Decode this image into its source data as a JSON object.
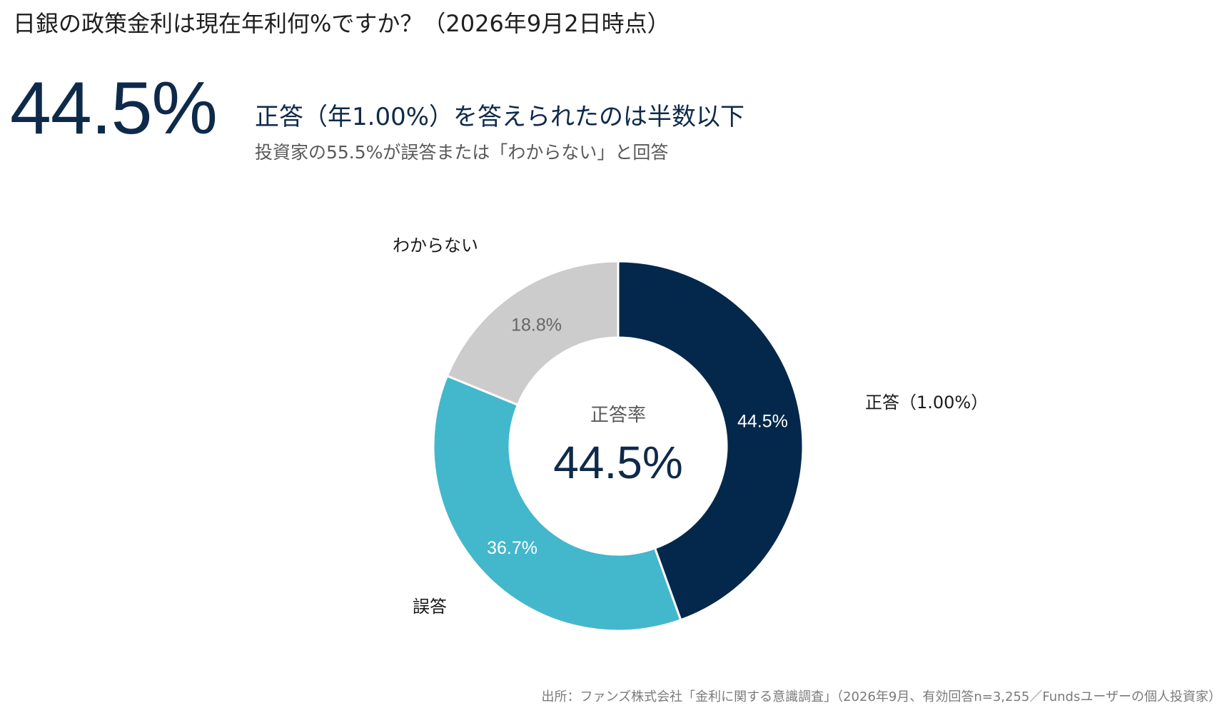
{
  "question": "日銀の政策金利は現在年利何%ですか？（2026年9月2日時点）",
  "headline": {
    "big_value": "44.5%",
    "title": "正答（年1.00%）を答えられたのは半数以下",
    "subtitle": "投資家の55.5%が誤答または「わからない」と回答"
  },
  "chart_data": {
    "type": "pie",
    "donut": true,
    "center_label": "正答率",
    "center_value": "44.5%",
    "slices": [
      {
        "name": "正答（1.00%）",
        "value": 44.5,
        "label": "44.5%",
        "color": "#04284b",
        "text_color": "#ffffff"
      },
      {
        "name": "誤答",
        "value": 36.7,
        "label": "36.7%",
        "color": "#43b7cc",
        "text_color": "#ffffff"
      },
      {
        "name": "わからない",
        "value": 18.8,
        "label": "18.8%",
        "color": "#cccccc",
        "text_color": "#666666"
      }
    ]
  },
  "source": "出所：ファンズ株式会社「金利に関する意識調査」（2026年9月、有効回答n=3,255／Fundsユーザーの個人投資家）",
  "colors": {
    "accent": "#0e2a4a",
    "subtext": "#595959"
  }
}
